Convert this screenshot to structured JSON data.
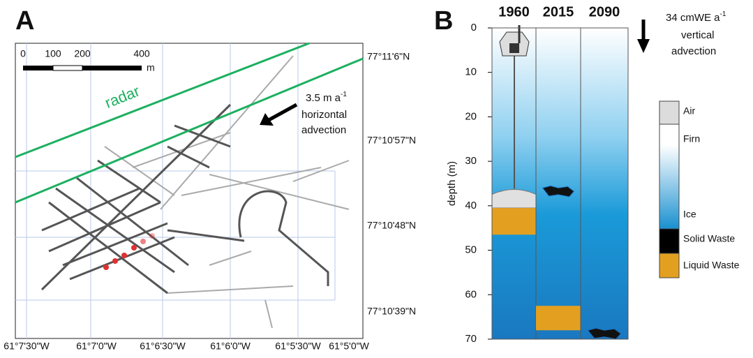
{
  "panel_a": {
    "label": "A",
    "scale_labels": [
      "0",
      "100",
      "200",
      "400"
    ],
    "scale_unit": "m",
    "radar_label": "radar",
    "advection": {
      "text": "3.5 m a",
      "sup": "-1",
      "lines": [
        "horizontal",
        "advection"
      ]
    },
    "lat_labels": [
      "77°11'6\"N",
      "77°10'57\"N",
      "77°10'48\"N",
      "77°10'39\"N"
    ],
    "lon_labels": [
      "61°7'30\"W",
      "61°7'0\"W",
      "61°6'30\"W",
      "61°6'0\"W",
      "61°5'30\"W",
      "61°5'0\"W"
    ]
  },
  "panel_b": {
    "label": "B",
    "advection": {
      "text": "34 cmWE a",
      "sup": "-1",
      "lines": [
        "vertical",
        "advection"
      ]
    },
    "ylabel": "depth (m)",
    "ylim": [
      0,
      70
    ],
    "yticks": [
      0,
      10,
      20,
      30,
      40,
      50,
      60,
      70
    ],
    "columns": [
      {
        "year": "1960",
        "layers": [
          {
            "top": 36.5,
            "bottom": 40.5,
            "color": "#e0e0e0"
          },
          {
            "top": 40.5,
            "bottom": 46.5,
            "color": "#e3a020"
          }
        ]
      },
      {
        "year": "2015",
        "layers": [
          {
            "top": 36,
            "bottom": 37.5,
            "color": "#111111"
          },
          {
            "top": 62.5,
            "bottom": 68,
            "color": "#e3a020"
          }
        ]
      },
      {
        "year": "2090",
        "layers": [
          {
            "top": 68,
            "bottom": 69.5,
            "color": "#111111"
          }
        ]
      }
    ],
    "legend": [
      {
        "name": "Air",
        "color": "#dcdcdc"
      },
      {
        "name": "Firn",
        "color": "#ffffff"
      },
      {
        "name": "Ice",
        "color": "#1a90d0"
      },
      {
        "name": "Solid Waste",
        "color": "#000000"
      },
      {
        "name": "Liquid Waste",
        "color": "#e3a020"
      }
    ]
  }
}
